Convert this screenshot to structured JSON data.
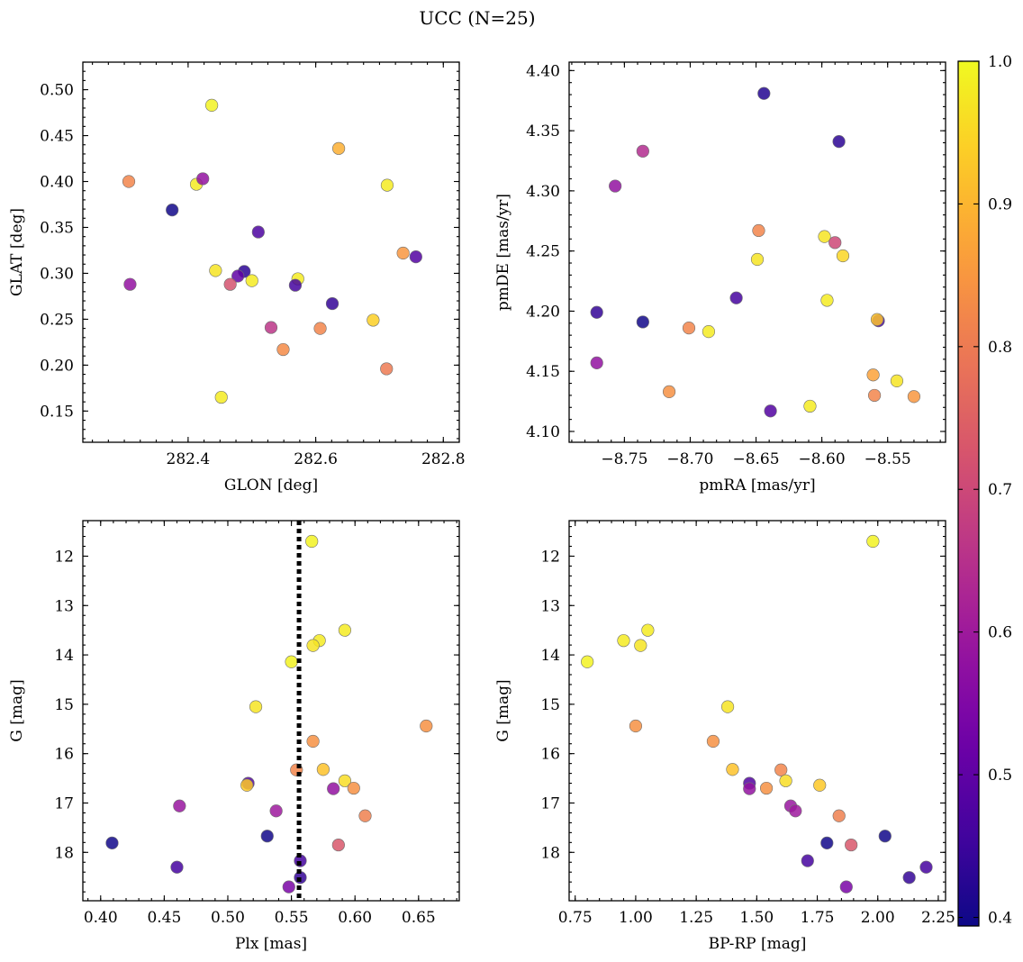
{
  "figure": {
    "title": "UCC (N=25)",
    "colorbar": {
      "colormap": "plasma",
      "range": [
        0.394,
        1.0
      ],
      "ticks": [
        0.4,
        0.5,
        0.6,
        0.7,
        0.8,
        0.9,
        1.0
      ],
      "tick_labels": [
        "0.4",
        "0.5",
        "0.6",
        "0.7",
        "0.8",
        "0.9",
        "1.0"
      ]
    }
  },
  "colors": {
    "plasma_stops": [
      "#0d0887",
      "#46039f",
      "#7201a8",
      "#9c179e",
      "#bd3786",
      "#d8576b",
      "#ed7953",
      "#fb9f3a",
      "#fdca26",
      "#f0f921"
    ],
    "vertical_line": "#000000"
  },
  "chart_data": [
    {
      "type": "scatter",
      "xlabel": "GLON [deg]",
      "ylabel": "GLAT [deg]",
      "xlim": [
        282.235,
        282.825
      ],
      "ylim": [
        0.116,
        0.53
      ],
      "xticks": [
        282.4,
        282.6,
        282.8
      ],
      "xtick_labels": [
        "282.4",
        "282.6",
        "282.8"
      ],
      "xminor": 0.025,
      "yticks": [
        0.15,
        0.2,
        0.25,
        0.3,
        0.35,
        0.4,
        0.45,
        0.5
      ],
      "ytick_labels": [
        "0.15",
        "0.20",
        "0.25",
        "0.30",
        "0.35",
        "0.40",
        "0.45",
        "0.50"
      ],
      "yminor": 0.01,
      "yinvert": false,
      "points": [
        {
          "x": 282.437,
          "y": 0.483,
          "c": 0.99
        },
        {
          "x": 282.636,
          "y": 0.436,
          "c": 0.89
        },
        {
          "x": 282.307,
          "y": 0.4,
          "c": 0.82
        },
        {
          "x": 282.413,
          "y": 0.397,
          "c": 0.98
        },
        {
          "x": 282.423,
          "y": 0.403,
          "c": 0.58
        },
        {
          "x": 282.712,
          "y": 0.396,
          "c": 0.98
        },
        {
          "x": 282.375,
          "y": 0.369,
          "c": 0.4
        },
        {
          "x": 282.51,
          "y": 0.345,
          "c": 0.47
        },
        {
          "x": 282.737,
          "y": 0.322,
          "c": 0.85
        },
        {
          "x": 282.757,
          "y": 0.318,
          "c": 0.48
        },
        {
          "x": 282.443,
          "y": 0.303,
          "c": 0.97
        },
        {
          "x": 282.488,
          "y": 0.302,
          "c": 0.43
        },
        {
          "x": 282.478,
          "y": 0.297,
          "c": 0.5
        },
        {
          "x": 282.5,
          "y": 0.292,
          "c": 0.98
        },
        {
          "x": 282.572,
          "y": 0.294,
          "c": 0.98
        },
        {
          "x": 282.568,
          "y": 0.287,
          "c": 0.46
        },
        {
          "x": 282.309,
          "y": 0.288,
          "c": 0.58
        },
        {
          "x": 282.466,
          "y": 0.288,
          "c": 0.72
        },
        {
          "x": 282.626,
          "y": 0.267,
          "c": 0.44
        },
        {
          "x": 282.53,
          "y": 0.241,
          "c": 0.66
        },
        {
          "x": 282.607,
          "y": 0.24,
          "c": 0.82
        },
        {
          "x": 282.69,
          "y": 0.249,
          "c": 0.94
        },
        {
          "x": 282.549,
          "y": 0.217,
          "c": 0.83
        },
        {
          "x": 282.711,
          "y": 0.196,
          "c": 0.8
        },
        {
          "x": 282.452,
          "y": 0.165,
          "c": 0.98
        }
      ]
    },
    {
      "type": "scatter",
      "xlabel": "pmRA [mas/yr]",
      "ylabel": "pmDE [mas/yr]",
      "xlim": [
        -8.792,
        -8.506
      ],
      "ylim": [
        4.091,
        4.407
      ],
      "xticks": [
        -8.75,
        -8.7,
        -8.65,
        -8.6,
        -8.55
      ],
      "xtick_labels": [
        "−8.75",
        "−8.70",
        "−8.65",
        "−8.60",
        "−8.55"
      ],
      "xminor": 0.01,
      "yticks": [
        4.1,
        4.15,
        4.2,
        4.25,
        4.3,
        4.35,
        4.4
      ],
      "ytick_labels": [
        "4.10",
        "4.15",
        "4.20",
        "4.25",
        "4.30",
        "4.35",
        "4.40"
      ],
      "yminor": 0.01,
      "yinvert": false,
      "points": [
        {
          "x": -8.644,
          "y": 4.381,
          "c": 0.42
        },
        {
          "x": -8.587,
          "y": 4.341,
          "c": 0.43
        },
        {
          "x": -8.736,
          "y": 4.333,
          "c": 0.64
        },
        {
          "x": -8.757,
          "y": 4.304,
          "c": 0.58
        },
        {
          "x": -8.648,
          "y": 4.267,
          "c": 0.82
        },
        {
          "x": -8.598,
          "y": 4.262,
          "c": 0.97
        },
        {
          "x": -8.59,
          "y": 4.257,
          "c": 0.7
        },
        {
          "x": -8.584,
          "y": 4.246,
          "c": 0.95
        },
        {
          "x": -8.649,
          "y": 4.243,
          "c": 0.97
        },
        {
          "x": -8.665,
          "y": 4.211,
          "c": 0.46
        },
        {
          "x": -8.596,
          "y": 4.209,
          "c": 0.98
        },
        {
          "x": -8.771,
          "y": 4.199,
          "c": 0.44
        },
        {
          "x": -8.736,
          "y": 4.191,
          "c": 0.4
        },
        {
          "x": -8.557,
          "y": 4.192,
          "c": 0.46
        },
        {
          "x": -8.558,
          "y": 4.193,
          "c": 0.92
        },
        {
          "x": -8.701,
          "y": 4.186,
          "c": 0.82
        },
        {
          "x": -8.686,
          "y": 4.183,
          "c": 0.98
        },
        {
          "x": -8.771,
          "y": 4.157,
          "c": 0.58
        },
        {
          "x": -8.561,
          "y": 4.147,
          "c": 0.87
        },
        {
          "x": -8.543,
          "y": 4.142,
          "c": 0.97
        },
        {
          "x": -8.716,
          "y": 4.133,
          "c": 0.84
        },
        {
          "x": -8.56,
          "y": 4.13,
          "c": 0.82
        },
        {
          "x": -8.53,
          "y": 4.129,
          "c": 0.85
        },
        {
          "x": -8.609,
          "y": 4.121,
          "c": 0.98
        },
        {
          "x": -8.639,
          "y": 4.117,
          "c": 0.48
        }
      ]
    },
    {
      "type": "scatter",
      "xlabel": "Plx [mas]",
      "ylabel": "G [mag]",
      "xlim": [
        0.386,
        0.682
      ],
      "ylim": [
        11.28,
        18.98
      ],
      "xticks": [
        0.4,
        0.45,
        0.5,
        0.55,
        0.6,
        0.65
      ],
      "xtick_labels": [
        "0.40",
        "0.45",
        "0.50",
        "0.55",
        "0.60",
        "0.65"
      ],
      "xminor": 0.01,
      "yticks": [
        12,
        13,
        14,
        15,
        16,
        17,
        18
      ],
      "ytick_labels": [
        "12",
        "13",
        "14",
        "15",
        "16",
        "17",
        "18"
      ],
      "yminor": 0.2,
      "yinvert": true,
      "vline": 0.556,
      "points": [
        {
          "x": 0.566,
          "y": 11.7,
          "c": 0.99
        },
        {
          "x": 0.592,
          "y": 13.5,
          "c": 0.98
        },
        {
          "x": 0.572,
          "y": 13.71,
          "c": 0.98
        },
        {
          "x": 0.567,
          "y": 13.81,
          "c": 0.97
        },
        {
          "x": 0.55,
          "y": 14.14,
          "c": 0.99
        },
        {
          "x": 0.522,
          "y": 15.05,
          "c": 0.97
        },
        {
          "x": 0.656,
          "y": 15.44,
          "c": 0.84
        },
        {
          "x": 0.567,
          "y": 15.75,
          "c": 0.84
        },
        {
          "x": 0.554,
          "y": 16.33,
          "c": 0.82
        },
        {
          "x": 0.575,
          "y": 16.32,
          "c": 0.92
        },
        {
          "x": 0.592,
          "y": 16.55,
          "c": 0.96
        },
        {
          "x": 0.516,
          "y": 16.6,
          "c": 0.48
        },
        {
          "x": 0.515,
          "y": 16.64,
          "c": 0.93
        },
        {
          "x": 0.599,
          "y": 16.7,
          "c": 0.84
        },
        {
          "x": 0.583,
          "y": 16.71,
          "c": 0.58
        },
        {
          "x": 0.462,
          "y": 17.06,
          "c": 0.59
        },
        {
          "x": 0.538,
          "y": 17.16,
          "c": 0.6
        },
        {
          "x": 0.608,
          "y": 17.26,
          "c": 0.81
        },
        {
          "x": 0.531,
          "y": 17.67,
          "c": 0.4
        },
        {
          "x": 0.409,
          "y": 17.81,
          "c": 0.4
        },
        {
          "x": 0.587,
          "y": 17.85,
          "c": 0.73
        },
        {
          "x": 0.557,
          "y": 18.17,
          "c": 0.46
        },
        {
          "x": 0.46,
          "y": 18.3,
          "c": 0.46
        },
        {
          "x": 0.557,
          "y": 18.51,
          "c": 0.44
        },
        {
          "x": 0.548,
          "y": 18.7,
          "c": 0.54
        }
      ]
    },
    {
      "type": "scatter",
      "xlabel": "BP-RP [mag]",
      "ylabel": "G [mag]",
      "xlim": [
        0.725,
        2.28
      ],
      "ylim": [
        11.28,
        18.98
      ],
      "xticks": [
        0.75,
        1.0,
        1.25,
        1.5,
        1.75,
        2.0,
        2.25
      ],
      "xtick_labels": [
        "0.75",
        "1.00",
        "1.25",
        "1.50",
        "1.75",
        "2.00",
        "2.25"
      ],
      "xminor": 0.05,
      "yticks": [
        12,
        13,
        14,
        15,
        16,
        17,
        18
      ],
      "ytick_labels": [
        "12",
        "13",
        "14",
        "15",
        "16",
        "17",
        "18"
      ],
      "yminor": 0.2,
      "yinvert": true,
      "points": [
        {
          "x": 1.98,
          "y": 11.7,
          "c": 0.99
        },
        {
          "x": 1.05,
          "y": 13.5,
          "c": 0.98
        },
        {
          "x": 0.95,
          "y": 13.71,
          "c": 0.98
        },
        {
          "x": 1.02,
          "y": 13.81,
          "c": 0.97
        },
        {
          "x": 0.8,
          "y": 14.14,
          "c": 0.99
        },
        {
          "x": 1.38,
          "y": 15.05,
          "c": 0.97
        },
        {
          "x": 1.0,
          "y": 15.44,
          "c": 0.84
        },
        {
          "x": 1.32,
          "y": 15.75,
          "c": 0.84
        },
        {
          "x": 1.6,
          "y": 16.33,
          "c": 0.82
        },
        {
          "x": 1.4,
          "y": 16.32,
          "c": 0.92
        },
        {
          "x": 1.62,
          "y": 16.55,
          "c": 0.96
        },
        {
          "x": 1.47,
          "y": 16.6,
          "c": 0.48
        },
        {
          "x": 1.76,
          "y": 16.64,
          "c": 0.93
        },
        {
          "x": 1.54,
          "y": 16.7,
          "c": 0.84
        },
        {
          "x": 1.47,
          "y": 16.71,
          "c": 0.58
        },
        {
          "x": 1.64,
          "y": 17.06,
          "c": 0.59
        },
        {
          "x": 1.66,
          "y": 17.16,
          "c": 0.6
        },
        {
          "x": 1.84,
          "y": 17.26,
          "c": 0.81
        },
        {
          "x": 2.03,
          "y": 17.67,
          "c": 0.4
        },
        {
          "x": 1.79,
          "y": 17.81,
          "c": 0.4
        },
        {
          "x": 1.89,
          "y": 17.85,
          "c": 0.73
        },
        {
          "x": 1.71,
          "y": 18.17,
          "c": 0.46
        },
        {
          "x": 2.2,
          "y": 18.3,
          "c": 0.46
        },
        {
          "x": 2.13,
          "y": 18.51,
          "c": 0.44
        },
        {
          "x": 1.87,
          "y": 18.7,
          "c": 0.54
        }
      ]
    }
  ]
}
